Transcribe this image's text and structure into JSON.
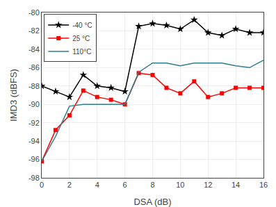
{
  "chart_data": {
    "type": "line",
    "xlabel": "DSA (dB)",
    "ylabel": "IMD3 (dBFS)",
    "xlim": [
      0,
      16
    ],
    "ylim": [
      -98,
      -80
    ],
    "xticks": [
      0,
      2,
      4,
      6,
      8,
      10,
      12,
      14,
      16
    ],
    "yticks": [
      -98,
      -96,
      -94,
      -92,
      -90,
      -88,
      -86,
      -84,
      -82,
      -80
    ],
    "grid": true,
    "legend": "upper left",
    "x": [
      0,
      1,
      2,
      3,
      4,
      5,
      6,
      7,
      8,
      9,
      10,
      11,
      12,
      13,
      14,
      15,
      16
    ],
    "series": [
      {
        "name": "-40 °C",
        "color": "#000000",
        "marker": "star",
        "values": [
          -88.0,
          -88.6,
          -89.2,
          -86.8,
          -88.0,
          -88.2,
          -88.6,
          -81.5,
          -81.2,
          -81.4,
          -81.8,
          -80.8,
          -82.2,
          -82.5,
          -81.8,
          -82.2,
          -82.2
        ]
      },
      {
        "name": "25 °C",
        "color": "#ff0000",
        "marker": "square",
        "values": [
          -96.2,
          -92.8,
          -91.2,
          -88.5,
          -89.2,
          -89.5,
          -90.0,
          -86.6,
          -86.8,
          -88.2,
          -88.8,
          -87.5,
          -89.2,
          -88.8,
          -88.2,
          -88.2,
          -88.2
        ]
      },
      {
        "name": "110°C",
        "color": "#2e7d8c",
        "values": [
          -96.2,
          -93.5,
          -90.2,
          -90.0,
          -90.0,
          -90.0,
          -90.0,
          -86.5,
          -85.5,
          -85.5,
          -85.8,
          -85.5,
          -85.5,
          -85.5,
          -85.8,
          -86.0,
          -85.2
        ]
      }
    ]
  }
}
